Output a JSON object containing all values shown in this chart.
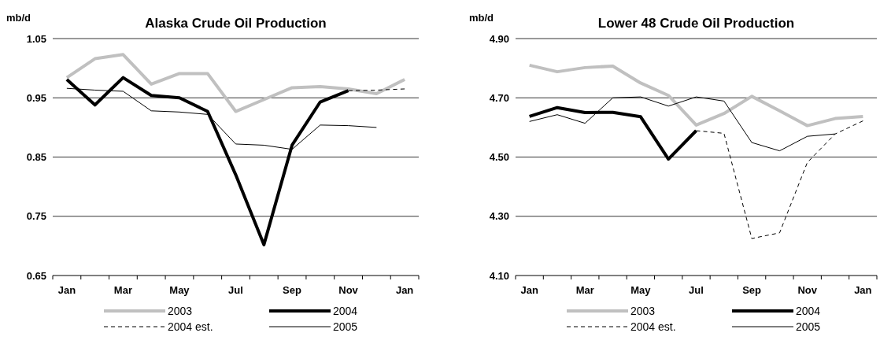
{
  "chart_data": [
    {
      "type": "line",
      "title": "Alaska Crude Oil Production",
      "ylabel": "mb/d",
      "categories": [
        "Jan",
        null,
        "Mar",
        null,
        "May",
        null,
        "Jul",
        null,
        "Sep",
        null,
        "Nov",
        null,
        "Jan"
      ],
      "ylim": [
        0.65,
        1.05
      ],
      "yticks": [
        0.65,
        0.75,
        0.85,
        0.95,
        1.05
      ],
      "grid": "y",
      "legend": "bottom",
      "series": [
        {
          "name": "2003",
          "color": "#c0c0c0",
          "line_style": "solid",
          "values": [
            0.984,
            1.016,
            1.023,
            0.973,
            0.991,
            0.991,
            0.927,
            0.947,
            0.967,
            0.969,
            0.965,
            0.957,
            0.981
          ]
        },
        {
          "name": "2004",
          "color": "#000000",
          "line_style": "solid",
          "values": [
            0.981,
            0.938,
            0.984,
            0.954,
            0.95,
            0.927,
            0.82,
            0.702,
            0.87,
            0.943,
            0.962,
            null,
            null
          ]
        },
        {
          "name": "2004 est.",
          "color": "#000000",
          "line_style": "dashed",
          "values": [
            null,
            null,
            null,
            null,
            null,
            null,
            null,
            null,
            null,
            null,
            0.962,
            0.963,
            0.965
          ]
        },
        {
          "name": "2005",
          "color": "#000000",
          "line_style": "solid",
          "values": [
            0.966,
            0.963,
            0.961,
            0.928,
            0.926,
            0.922,
            0.872,
            0.87,
            0.863,
            0.904,
            0.903,
            0.9,
            null
          ]
        }
      ]
    },
    {
      "type": "line",
      "title": "Lower 48 Crude Oil Production",
      "ylabel": "mb/d",
      "categories": [
        "Jan",
        null,
        "Mar",
        null,
        "May",
        null,
        "Jul",
        null,
        "Sep",
        null,
        "Nov",
        null,
        "Jan"
      ],
      "ylim": [
        4.1,
        4.9
      ],
      "yticks": [
        {
          "value": 4.1,
          "label": "4.10"
        },
        {
          "value": 4.3,
          "label": "4.30"
        },
        {
          "value": 4.5,
          "label": "4.50"
        },
        {
          "value": 4.7,
          "label": "4.70"
        },
        {
          "value": 4.9,
          "label": "4.90"
        }
      ],
      "grid": "y",
      "legend": "bottom",
      "series": [
        {
          "name": "2003",
          "color": "#c0c0c0",
          "line_style": "solid",
          "values": [
            4.81,
            4.788,
            4.802,
            4.807,
            4.75,
            4.708,
            4.608,
            4.647,
            4.705,
            4.656,
            4.606,
            4.63,
            4.637
          ]
        },
        {
          "name": "2004",
          "color": "#000000",
          "line_style": "solid",
          "values": [
            4.637,
            4.667,
            4.65,
            4.651,
            4.636,
            4.493,
            4.589,
            null,
            null,
            null,
            null,
            null,
            null
          ]
        },
        {
          "name": "2004 est.",
          "color": "#000000",
          "line_style": "dashed",
          "values": [
            null,
            null,
            null,
            null,
            null,
            null,
            4.589,
            4.58,
            4.225,
            4.244,
            4.482,
            4.578,
            4.622
          ]
        },
        {
          "name": "2005",
          "color": "#000000",
          "line_style": "solid",
          "values": [
            4.62,
            4.643,
            4.614,
            4.7,
            4.703,
            4.672,
            4.703,
            4.689,
            4.549,
            4.521,
            4.57,
            4.578,
            null
          ]
        }
      ]
    }
  ]
}
